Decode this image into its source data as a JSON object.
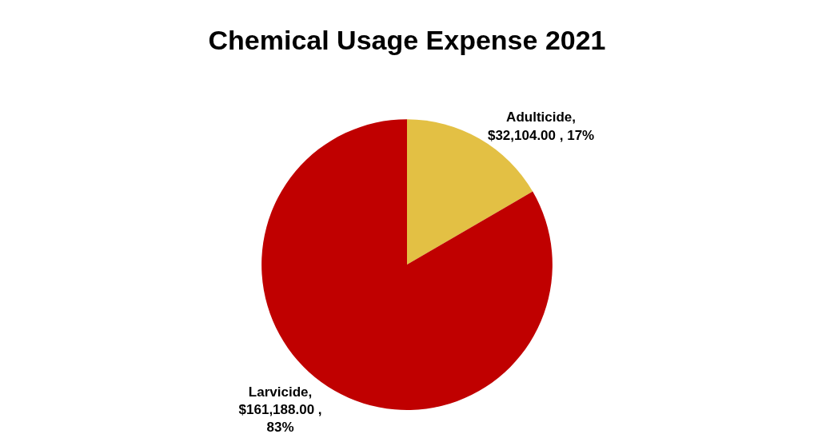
{
  "chart_data": {
    "type": "pie",
    "title": "Chemical Usage Expense 2021",
    "categories": [
      "Adulticide",
      "Larvicide"
    ],
    "values": [
      32104.0,
      161188.0
    ],
    "colors": [
      "#e3c044",
      "#c00000"
    ],
    "value_labels": [
      ",\n$32,104.00 , 17%",
      ",\n$161,188.00 ,\n83%"
    ],
    "legend": false
  }
}
